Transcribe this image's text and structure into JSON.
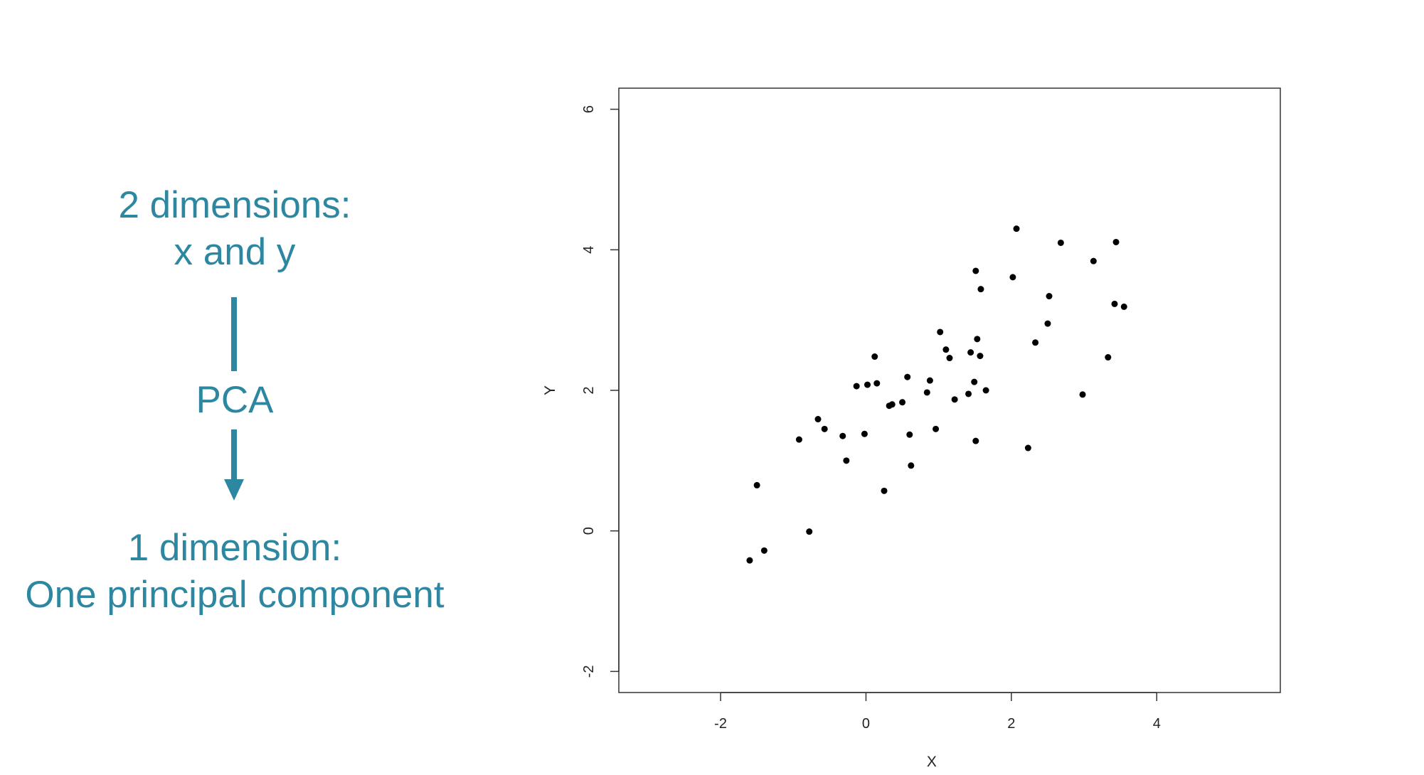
{
  "left_panel": {
    "top_line1": "2 dimensions:",
    "top_line2": "x and y",
    "middle_label": "PCA",
    "bottom_line1": "1 dimension:",
    "bottom_line2": "One principal component",
    "accent_color": "#2e87a0"
  },
  "chart_data": {
    "type": "scatter",
    "title": "",
    "xlabel": "X",
    "ylabel": "Y",
    "xlim": [
      -3.4,
      5.7
    ],
    "ylim": [
      -2.3,
      6.3
    ],
    "xticks": [
      -2,
      0,
      2,
      4
    ],
    "yticks": [
      -2,
      0,
      2,
      4,
      6
    ],
    "grid": false,
    "point_color": "#000000",
    "points": [
      [
        -1.6,
        -0.42
      ],
      [
        -1.5,
        0.65
      ],
      [
        -1.4,
        -0.28
      ],
      [
        -0.78,
        -0.01
      ],
      [
        -0.92,
        1.3
      ],
      [
        -0.66,
        1.59
      ],
      [
        -0.57,
        1.45
      ],
      [
        -0.32,
        1.35
      ],
      [
        -0.27,
        1.0
      ],
      [
        -0.13,
        2.06
      ],
      [
        -0.02,
        1.38
      ],
      [
        0.02,
        2.08
      ],
      [
        0.12,
        2.48
      ],
      [
        0.15,
        2.1
      ],
      [
        0.25,
        0.57
      ],
      [
        0.32,
        1.78
      ],
      [
        0.36,
        1.8
      ],
      [
        0.5,
        1.83
      ],
      [
        0.57,
        2.19
      ],
      [
        0.6,
        1.37
      ],
      [
        0.62,
        0.93
      ],
      [
        0.84,
        1.97
      ],
      [
        0.88,
        2.14
      ],
      [
        0.96,
        1.45
      ],
      [
        1.02,
        2.83
      ],
      [
        1.1,
        2.58
      ],
      [
        1.15,
        2.46
      ],
      [
        1.22,
        1.87
      ],
      [
        1.41,
        1.95
      ],
      [
        1.44,
        2.54
      ],
      [
        1.49,
        2.12
      ],
      [
        1.51,
        3.7
      ],
      [
        1.51,
        1.28
      ],
      [
        1.53,
        2.73
      ],
      [
        1.57,
        2.49
      ],
      [
        1.58,
        3.44
      ],
      [
        1.65,
        2.0
      ],
      [
        2.02,
        3.61
      ],
      [
        2.07,
        4.3
      ],
      [
        2.23,
        1.18
      ],
      [
        2.33,
        2.68
      ],
      [
        2.5,
        2.95
      ],
      [
        2.52,
        3.34
      ],
      [
        2.68,
        4.1
      ],
      [
        2.98,
        1.94
      ],
      [
        3.13,
        3.84
      ],
      [
        3.33,
        2.47
      ],
      [
        3.42,
        3.23
      ],
      [
        3.44,
        4.11
      ],
      [
        3.55,
        3.19
      ]
    ]
  }
}
